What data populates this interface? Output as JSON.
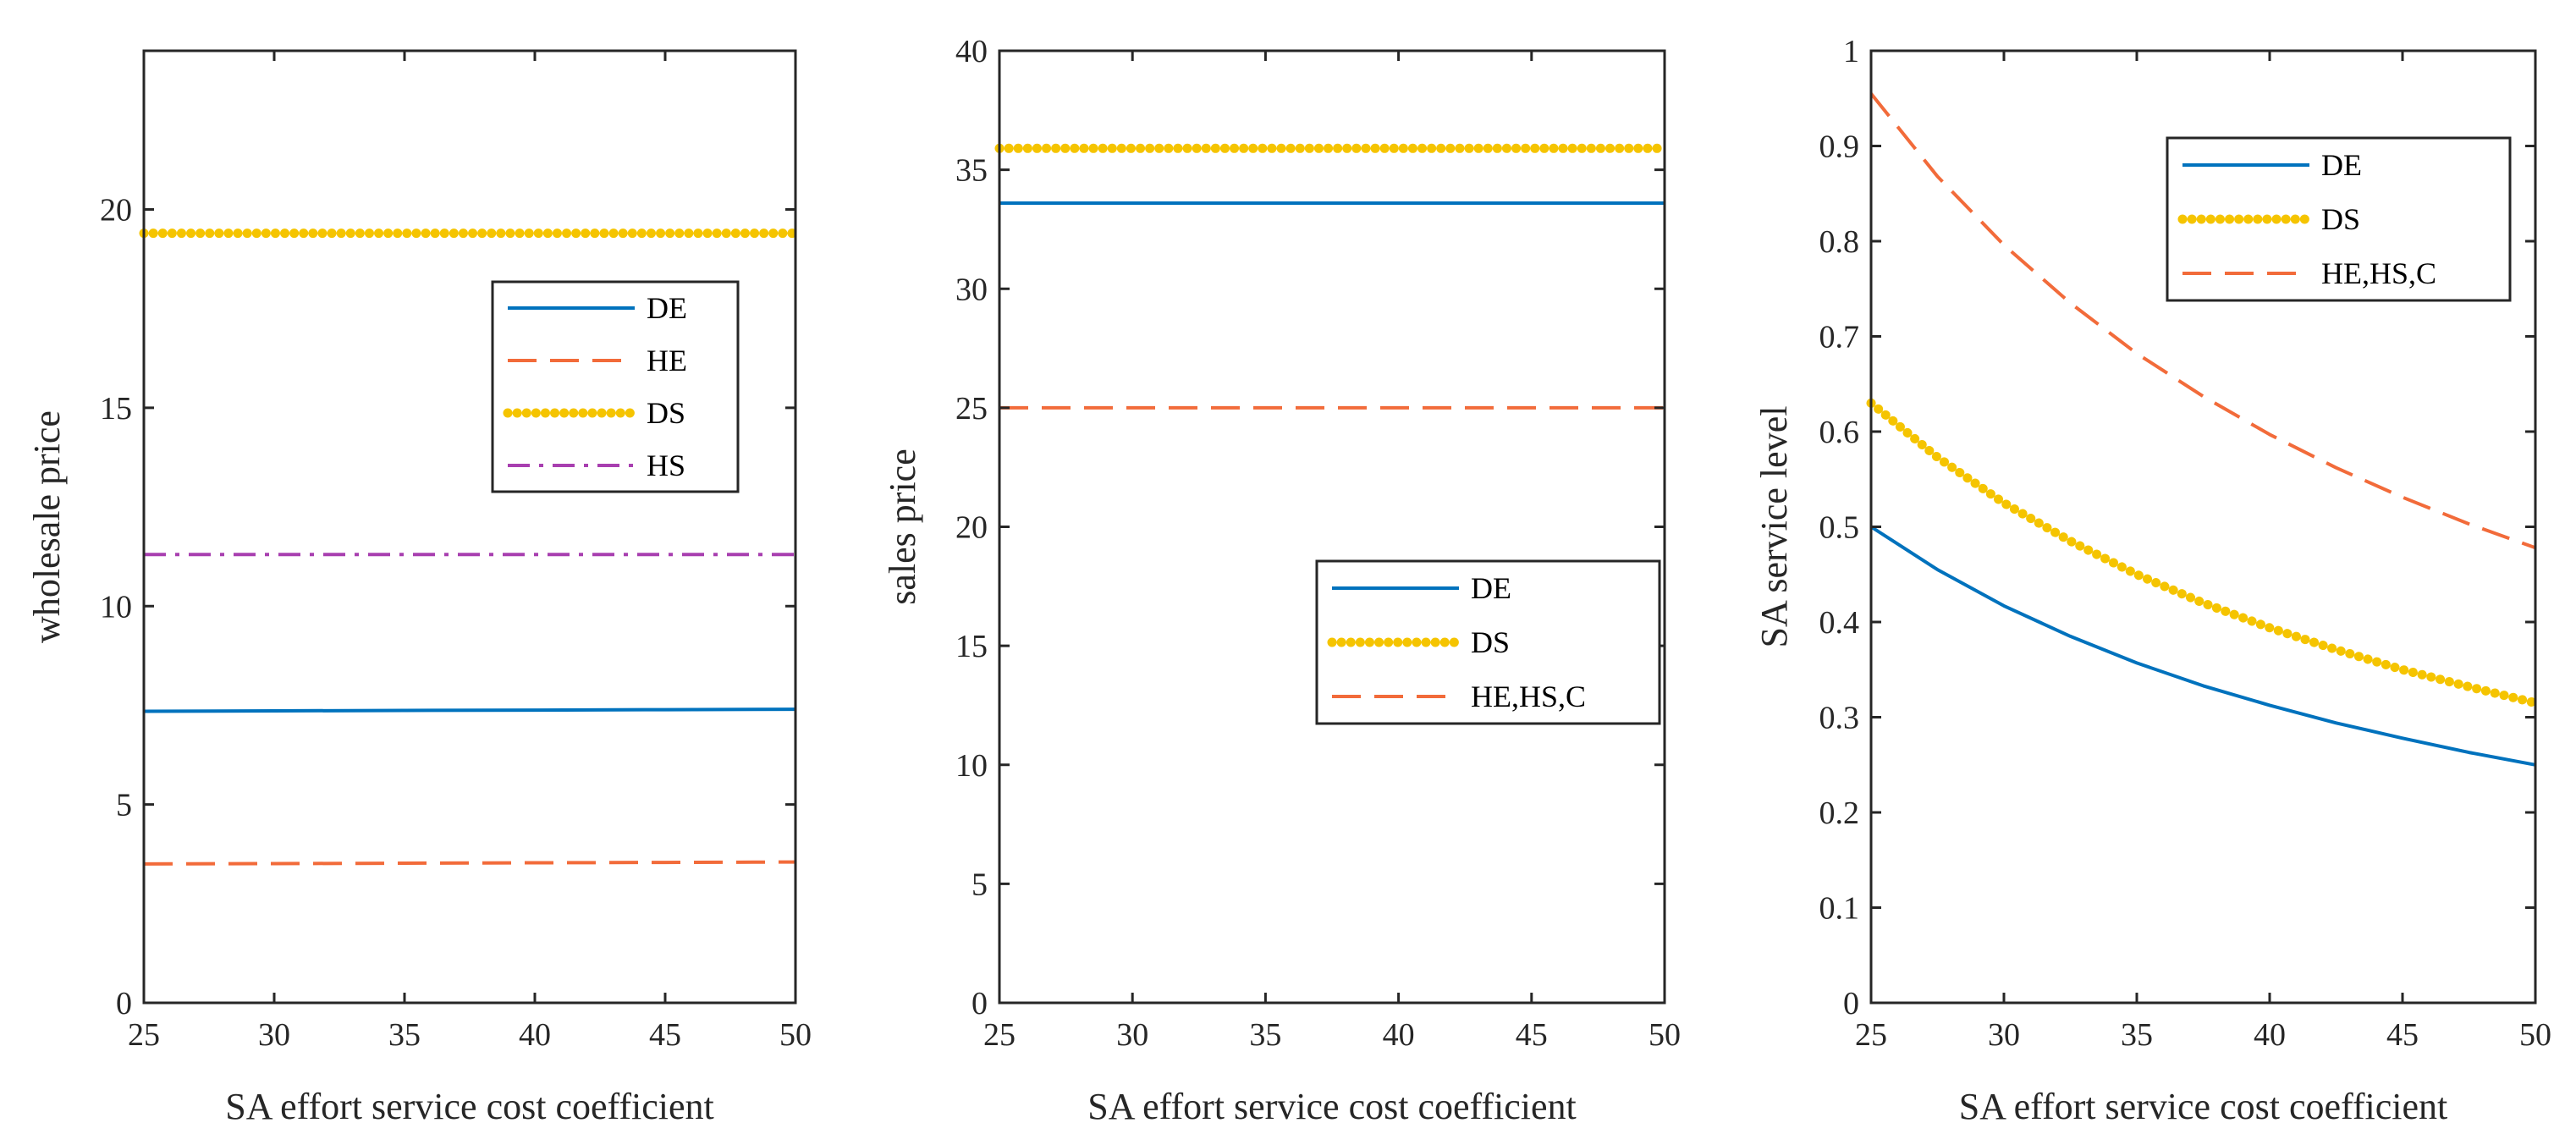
{
  "chart_data": [
    {
      "type": "line",
      "title": "",
      "xlabel": "SA effort service cost coefficient",
      "ylabel": "wholesale price",
      "xlim": [
        25,
        50
      ],
      "ylim": [
        0,
        24
      ],
      "xticks": [
        25,
        30,
        35,
        40,
        45,
        50
      ],
      "yticks": [
        0,
        5,
        10,
        15,
        20
      ],
      "legend_position": "center-right",
      "series": [
        {
          "name": "DE",
          "color": "#0072BD",
          "style": "solid",
          "x": [
            25,
            30,
            35,
            40,
            45,
            50
          ],
          "y": [
            7.35,
            7.36,
            7.37,
            7.38,
            7.39,
            7.4
          ]
        },
        {
          "name": "HE",
          "color": "#F26B3A",
          "style": "dashed",
          "x": [
            25,
            30,
            35,
            40,
            45,
            50
          ],
          "y": [
            3.5,
            3.51,
            3.52,
            3.53,
            3.54,
            3.55
          ]
        },
        {
          "name": "DS",
          "color": "#F5C400",
          "style": "dotted",
          "x": [
            25,
            30,
            35,
            40,
            45,
            50
          ],
          "y": [
            19.4,
            19.4,
            19.4,
            19.4,
            19.4,
            19.4
          ]
        },
        {
          "name": "HS",
          "color": "#A83FB0",
          "style": "dashdot",
          "x": [
            25,
            30,
            35,
            40,
            45,
            50
          ],
          "y": [
            11.3,
            11.3,
            11.3,
            11.3,
            11.3,
            11.3
          ]
        }
      ]
    },
    {
      "type": "line",
      "title": "",
      "xlabel": "SA effort service cost coefficient",
      "ylabel": "sales price",
      "xlim": [
        25,
        50
      ],
      "ylim": [
        0,
        40
      ],
      "xticks": [
        25,
        30,
        35,
        40,
        45,
        50
      ],
      "yticks": [
        0,
        5,
        10,
        15,
        20,
        25,
        30,
        35,
        40
      ],
      "legend_position": "center-right",
      "series": [
        {
          "name": "DE",
          "color": "#0072BD",
          "style": "solid",
          "x": [
            25,
            30,
            35,
            40,
            45,
            50
          ],
          "y": [
            33.6,
            33.6,
            33.6,
            33.6,
            33.6,
            33.6
          ]
        },
        {
          "name": "DS",
          "color": "#F5C400",
          "style": "dotted",
          "x": [
            25,
            30,
            35,
            40,
            45,
            50
          ],
          "y": [
            35.9,
            35.9,
            35.9,
            35.9,
            35.9,
            35.9
          ]
        },
        {
          "name": "HE,HS,C",
          "color": "#F26B3A",
          "style": "dashed",
          "x": [
            25,
            30,
            35,
            40,
            45,
            50
          ],
          "y": [
            25.0,
            25.0,
            25.0,
            25.0,
            25.0,
            25.0
          ]
        }
      ]
    },
    {
      "type": "line",
      "title": "",
      "xlabel": "SA effort service cost coefficient",
      "ylabel": "SA service level",
      "xlim": [
        25,
        50
      ],
      "ylim": [
        0,
        1
      ],
      "xticks": [
        25,
        30,
        35,
        40,
        45,
        50
      ],
      "yticks": [
        0,
        0.1,
        0.2,
        0.3,
        0.4,
        0.5,
        0.6,
        0.7,
        0.8,
        0.9,
        1
      ],
      "legend_position": "top-right",
      "series": [
        {
          "name": "DE",
          "color": "#0072BD",
          "style": "solid",
          "x": [
            25,
            27.5,
            30,
            32.5,
            35,
            37.5,
            40,
            42.5,
            45,
            47.5,
            50
          ],
          "y": [
            0.5,
            0.455,
            0.417,
            0.385,
            0.357,
            0.333,
            0.3125,
            0.294,
            0.278,
            0.263,
            0.25
          ]
        },
        {
          "name": "DS",
          "color": "#F5C400",
          "style": "dotted",
          "x": [
            25,
            27.5,
            30,
            32.5,
            35,
            37.5,
            40,
            42.5,
            45,
            47.5,
            50
          ],
          "y": [
            0.63,
            0.573,
            0.525,
            0.485,
            0.45,
            0.42,
            0.394,
            0.371,
            0.35,
            0.332,
            0.315
          ]
        },
        {
          "name": "HE,HS,C",
          "color": "#F26B3A",
          "style": "dashed",
          "x": [
            25,
            27.5,
            30,
            32.5,
            35,
            37.5,
            40,
            42.5,
            45,
            47.5,
            50
          ],
          "y": [
            0.955,
            0.868,
            0.796,
            0.735,
            0.682,
            0.637,
            0.597,
            0.562,
            0.531,
            0.503,
            0.478
          ]
        }
      ]
    }
  ]
}
